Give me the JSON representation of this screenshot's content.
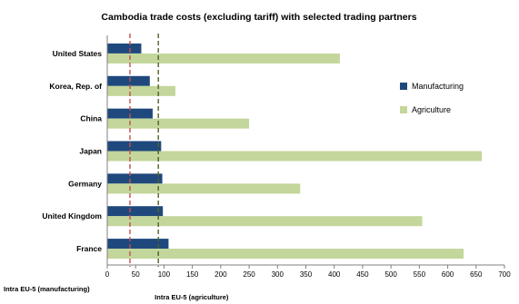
{
  "chart_data": {
    "type": "bar",
    "orientation": "horizontal",
    "title": "Cambodia trade costs (excluding tariff) with selected trading partners",
    "categories": [
      "United States",
      "Korea, Rep. of",
      "China",
      "Japan",
      "Germany",
      "United Kingdom",
      "France"
    ],
    "series": [
      {
        "name": "Manufacturing",
        "color": "#1f497d",
        "values": [
          60,
          75,
          80,
          95,
          97,
          98,
          108
        ]
      },
      {
        "name": "Agriculture",
        "color": "#c3d69b",
        "values": [
          410,
          120,
          250,
          660,
          340,
          555,
          628
        ]
      }
    ],
    "xlim": [
      0,
      700
    ],
    "xticks": [
      "0",
      "50",
      "100",
      "150",
      "200",
      "250",
      "300",
      "350",
      "400",
      "450",
      "500",
      "550",
      "600",
      "650",
      "700"
    ],
    "reference_lines": [
      {
        "label": "Intra EU-5 (manufacturing)",
        "value": 40,
        "color": "#c0504d"
      },
      {
        "label": "Intra EU-5 (agriculture)",
        "value": 90,
        "color": "#4f6228"
      }
    ],
    "legend_position": "right",
    "grid": false
  }
}
